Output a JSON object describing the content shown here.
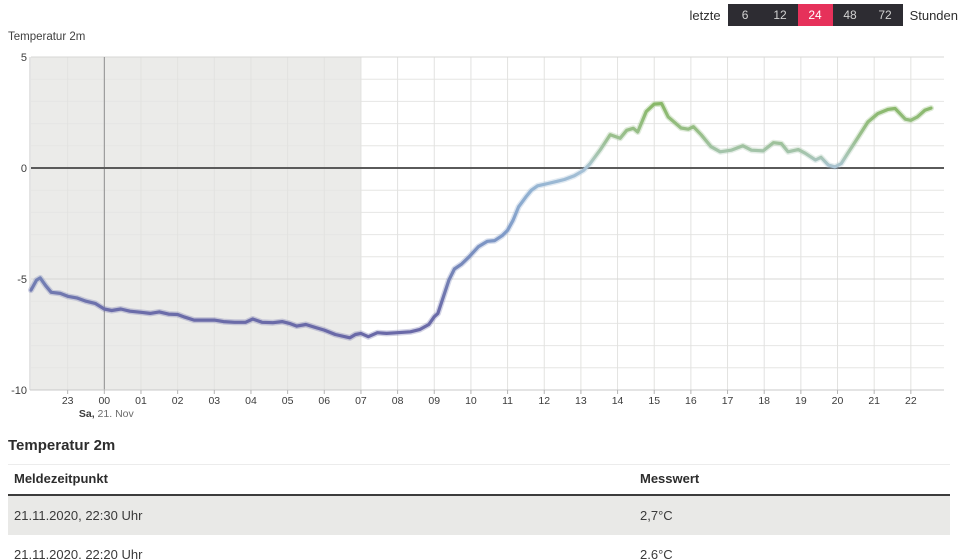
{
  "controls": {
    "prefix_label": "letzte",
    "suffix_label": "Stunden",
    "bar_color": "#2d2c32",
    "selected_color": "#e6315a",
    "unselected_text_color": "#d2d2d2",
    "options": [
      {
        "label": "6",
        "selected": false
      },
      {
        "label": "12",
        "selected": false
      },
      {
        "label": "24",
        "selected": true
      },
      {
        "label": "48",
        "selected": false
      },
      {
        "label": "72",
        "selected": false
      }
    ]
  },
  "chart": {
    "label": "Temperatur 2m",
    "y_tick_labels": [
      "5",
      "0",
      "-5",
      "-10"
    ],
    "x_tick_labels": [
      "23",
      "00",
      "01",
      "02",
      "03",
      "04",
      "05",
      "06",
      "07",
      "08",
      "09",
      "10",
      "11",
      "12",
      "13",
      "14",
      "15",
      "16",
      "17",
      "18",
      "19",
      "20",
      "21",
      "22"
    ],
    "day_label_prefix": "Sa,",
    "day_label_rest": " 21. Nov"
  },
  "chart_data": {
    "type": "line",
    "title": "Temperatur 2m",
    "ylabel": "",
    "xlabel": "",
    "ylim": [
      -10,
      5
    ],
    "y_major_ticks": [
      5,
      0,
      -5,
      -10
    ],
    "x_definition": "hours after 22:00 of the previous day (ticks 23,00...22; 00 = Sa, 21. Nov)",
    "x_hour_ticks_offsets": [
      1,
      2,
      3,
      4,
      5,
      6,
      7,
      8,
      9,
      10,
      11,
      12,
      13,
      14,
      15,
      16,
      17,
      18,
      19,
      20,
      21,
      22,
      23,
      24
    ],
    "midnight_offset": 2,
    "shaded_region_offsets": [
      0,
      9
    ],
    "grid": true,
    "zero_line": true,
    "line_gradient_by_value": [
      {
        "value": 5,
        "color": "#6faf45"
      },
      {
        "value": 3,
        "color": "#87b765"
      },
      {
        "value": 1.5,
        "color": "#99bf8b"
      },
      {
        "value": 0.5,
        "color": "#a7c5b4"
      },
      {
        "value": 0,
        "color": "#a9c3d6"
      },
      {
        "value": -1,
        "color": "#92b2d2"
      },
      {
        "value": -3,
        "color": "#7f9ac8"
      },
      {
        "value": -5,
        "color": "#7380b4"
      },
      {
        "value": -6.5,
        "color": "#6b6ca9"
      },
      {
        "value": -10,
        "color": "#6561a3"
      }
    ],
    "points": [
      [
        0,
        -5.5
      ],
      [
        0.15,
        -5.05
      ],
      [
        0.25,
        -4.95
      ],
      [
        0.4,
        -5.3
      ],
      [
        0.55,
        -5.6
      ],
      [
        0.8,
        -5.65
      ],
      [
        1,
        -5.78
      ],
      [
        1.25,
        -5.85
      ],
      [
        1.5,
        -6
      ],
      [
        1.75,
        -6.1
      ],
      [
        2,
        -6.35
      ],
      [
        2.2,
        -6.42
      ],
      [
        2.45,
        -6.35
      ],
      [
        2.7,
        -6.45
      ],
      [
        3,
        -6.5
      ],
      [
        3.25,
        -6.55
      ],
      [
        3.5,
        -6.48
      ],
      [
        3.75,
        -6.58
      ],
      [
        4,
        -6.6
      ],
      [
        4.2,
        -6.72
      ],
      [
        4.45,
        -6.85
      ],
      [
        4.75,
        -6.85
      ],
      [
        5,
        -6.85
      ],
      [
        5.25,
        -6.92
      ],
      [
        5.55,
        -6.95
      ],
      [
        5.85,
        -6.95
      ],
      [
        6.05,
        -6.8
      ],
      [
        6.3,
        -6.95
      ],
      [
        6.6,
        -6.97
      ],
      [
        6.85,
        -6.92
      ],
      [
        7.05,
        -7
      ],
      [
        7.25,
        -7.12
      ],
      [
        7.5,
        -7.05
      ],
      [
        7.75,
        -7.18
      ],
      [
        8,
        -7.3
      ],
      [
        8.3,
        -7.5
      ],
      [
        8.7,
        -7.65
      ],
      [
        8.85,
        -7.5
      ],
      [
        9,
        -7.45
      ],
      [
        9.2,
        -7.6
      ],
      [
        9.45,
        -7.42
      ],
      [
        9.7,
        -7.45
      ],
      [
        10,
        -7.42
      ],
      [
        10.35,
        -7.38
      ],
      [
        10.6,
        -7.28
      ],
      [
        10.85,
        -7.05
      ],
      [
        11,
        -6.7
      ],
      [
        11.1,
        -6.55
      ],
      [
        11.25,
        -5.8
      ],
      [
        11.4,
        -5.05
      ],
      [
        11.55,
        -4.55
      ],
      [
        11.75,
        -4.32
      ],
      [
        11.95,
        -4
      ],
      [
        12.2,
        -3.55
      ],
      [
        12.45,
        -3.3
      ],
      [
        12.65,
        -3.27
      ],
      [
        12.85,
        -3.05
      ],
      [
        13,
        -2.8
      ],
      [
        13.15,
        -2.35
      ],
      [
        13.3,
        -1.75
      ],
      [
        13.5,
        -1.3
      ],
      [
        13.65,
        -1
      ],
      [
        13.82,
        -0.8
      ],
      [
        14.1,
        -0.7
      ],
      [
        14.35,
        -0.6
      ],
      [
        14.55,
        -0.52
      ],
      [
        14.82,
        -0.35
      ],
      [
        15.08,
        -0.1
      ],
      [
        15.25,
        0.2
      ],
      [
        15.52,
        0.8
      ],
      [
        15.8,
        1.5
      ],
      [
        16.07,
        1.34
      ],
      [
        16.25,
        1.7
      ],
      [
        16.43,
        1.79
      ],
      [
        16.55,
        1.62
      ],
      [
        16.78,
        2.54
      ],
      [
        17,
        2.88
      ],
      [
        17.2,
        2.9
      ],
      [
        17.38,
        2.3
      ],
      [
        17.73,
        1.8
      ],
      [
        17.93,
        1.75
      ],
      [
        18.07,
        1.86
      ],
      [
        18.28,
        1.5
      ],
      [
        18.55,
        0.96
      ],
      [
        18.8,
        0.73
      ],
      [
        19.1,
        0.8
      ],
      [
        19.42,
        1
      ],
      [
        19.65,
        0.8
      ],
      [
        19.97,
        0.77
      ],
      [
        20.25,
        1.14
      ],
      [
        20.47,
        1.1
      ],
      [
        20.65,
        0.73
      ],
      [
        20.93,
        0.83
      ],
      [
        21.12,
        0.66
      ],
      [
        21.4,
        0.36
      ],
      [
        21.55,
        0.48
      ],
      [
        21.75,
        0.13
      ],
      [
        21.93,
        0.05
      ],
      [
        22.1,
        0.2
      ],
      [
        22.28,
        0.66
      ],
      [
        22.57,
        1.4
      ],
      [
        22.83,
        2.07
      ],
      [
        23.1,
        2.45
      ],
      [
        23.38,
        2.64
      ],
      [
        23.57,
        2.68
      ],
      [
        23.85,
        2.2
      ],
      [
        24,
        2.15
      ],
      [
        24.18,
        2.3
      ],
      [
        24.38,
        2.6
      ],
      [
        24.55,
        2.7
      ]
    ]
  },
  "table": {
    "heading": "Temperatur 2m",
    "columns": [
      "Meldezeitpunkt",
      "Messwert"
    ],
    "rows": [
      [
        "21.11.2020, 22:30 Uhr",
        "2,7°C"
      ],
      [
        "21.11.2020, 22:20 Uhr",
        "2,6°C"
      ]
    ]
  }
}
